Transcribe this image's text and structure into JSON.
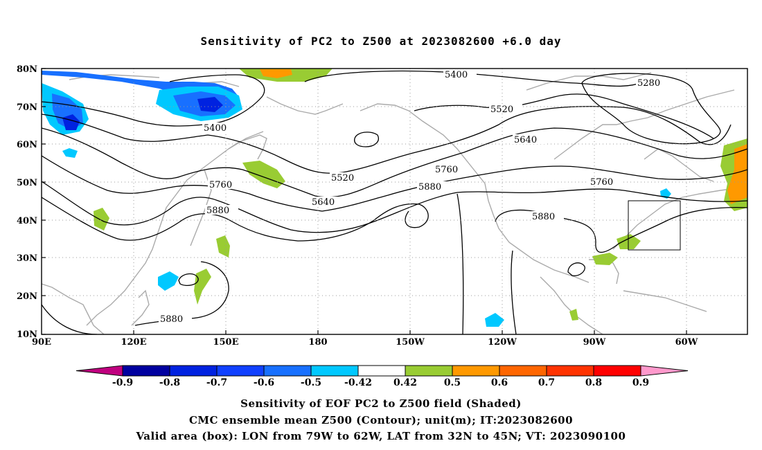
{
  "title": "Sensitivity of PC2 to Z500 at 2023082600 +6.0 day",
  "lat_ticks": [
    "80N",
    "70N",
    "60N",
    "50N",
    "40N",
    "30N",
    "20N",
    "10N"
  ],
  "lon_ticks": [
    "90E",
    "120E",
    "150E",
    "180",
    "150W",
    "120W",
    "90W",
    "60W"
  ],
  "contour_labels": [
    "5400",
    "5280",
    "5520",
    "5400",
    "5640",
    "5520",
    "5760",
    "5640",
    "5760",
    "5880",
    "5760",
    "5880",
    "5880",
    "5880"
  ],
  "colorbar": {
    "labels": [
      "-0.9",
      "-0.8",
      "-0.7",
      "-0.6",
      "-0.5",
      "-0.42",
      "0.42",
      "0.5",
      "0.6",
      "0.7",
      "0.8",
      "0.9"
    ],
    "colors": [
      "#0000a0",
      "#0022e0",
      "#1040ff",
      "#1870ff",
      "#00c8ff",
      "#ffffff",
      "#99cc33",
      "#ff9900",
      "#ff6600",
      "#ff3300",
      "#ff0000"
    ],
    "low_color": "#c0007f",
    "high_color": "#ff99cc"
  },
  "captions": {
    "line1": "Sensitivity of EOF PC2 to Z500 field (Shaded)",
    "line2": "CMC ensemble mean Z500 (Contour); unit(m); IT:2023082600",
    "line3": "Valid area (box): LON from 79W to 62W, LAT from 32N to 45N; VT: 2023090100"
  }
}
